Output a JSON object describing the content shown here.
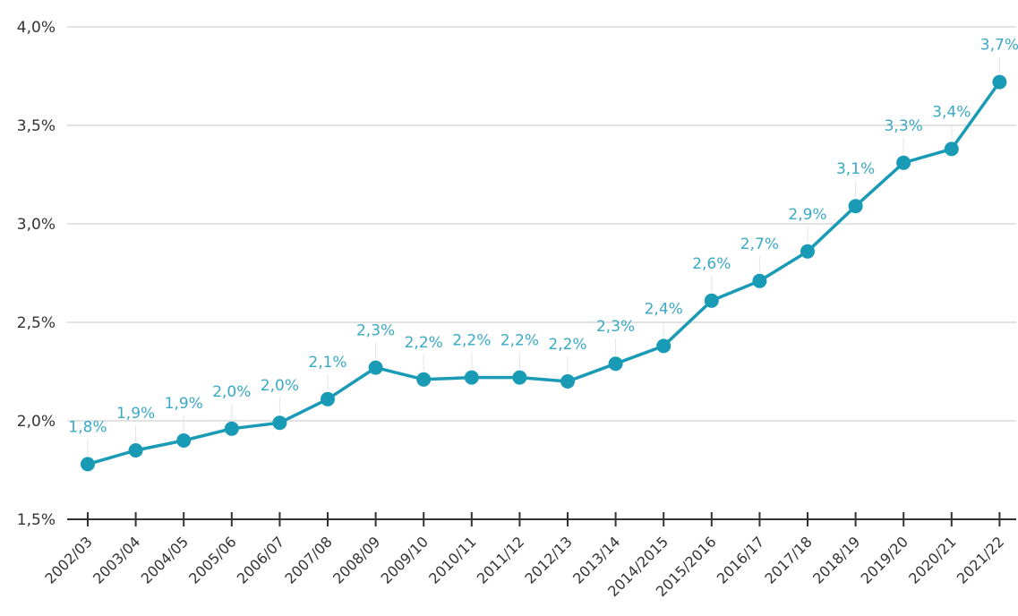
{
  "chart_data": {
    "type": "line",
    "title": "",
    "xlabel": "",
    "ylabel": "",
    "ylim": [
      1.5,
      4.0
    ],
    "y_ticks": [
      "1,5%",
      "2,0%",
      "2,5%",
      "3,0%",
      "3,5%",
      "4,0%"
    ],
    "y_tick_values": [
      1.5,
      2.0,
      2.5,
      3.0,
      3.5,
      4.0
    ],
    "grid": true,
    "categories": [
      "2002/03",
      "2003/04",
      "2004/05",
      "2005/06",
      "2006/07",
      "2007/08",
      "2008/09",
      "2009/10",
      "2010/11",
      "2011/12",
      "2012/13",
      "2013/14",
      "2014/2015",
      "2015/2016",
      "2016/17",
      "2017/18",
      "2018/19",
      "2019/20",
      "2020/21",
      "2021/22"
    ],
    "series": [
      {
        "values": [
          1.78,
          1.85,
          1.9,
          1.96,
          1.99,
          2.11,
          2.27,
          2.21,
          2.22,
          2.22,
          2.2,
          2.29,
          2.38,
          2.61,
          2.71,
          2.86,
          3.09,
          3.31,
          3.38,
          3.72
        ],
        "data_labels": [
          "1,8%",
          "1,9%",
          "1,9%",
          "2,0%",
          "2,0%",
          "2,1%",
          "2,3%",
          "2,2%",
          "2,2%",
          "2,2%",
          "2,2%",
          "2,3%",
          "2,4%",
          "2,6%",
          "2,7%",
          "2,9%",
          "3,1%",
          "3,3%",
          "3,4%",
          "3,7%"
        ]
      }
    ],
    "colors": {
      "line": "#1a9bb5",
      "label": "#3aa9c6",
      "grid": "#d9d9d9",
      "axis": "#333333"
    }
  }
}
